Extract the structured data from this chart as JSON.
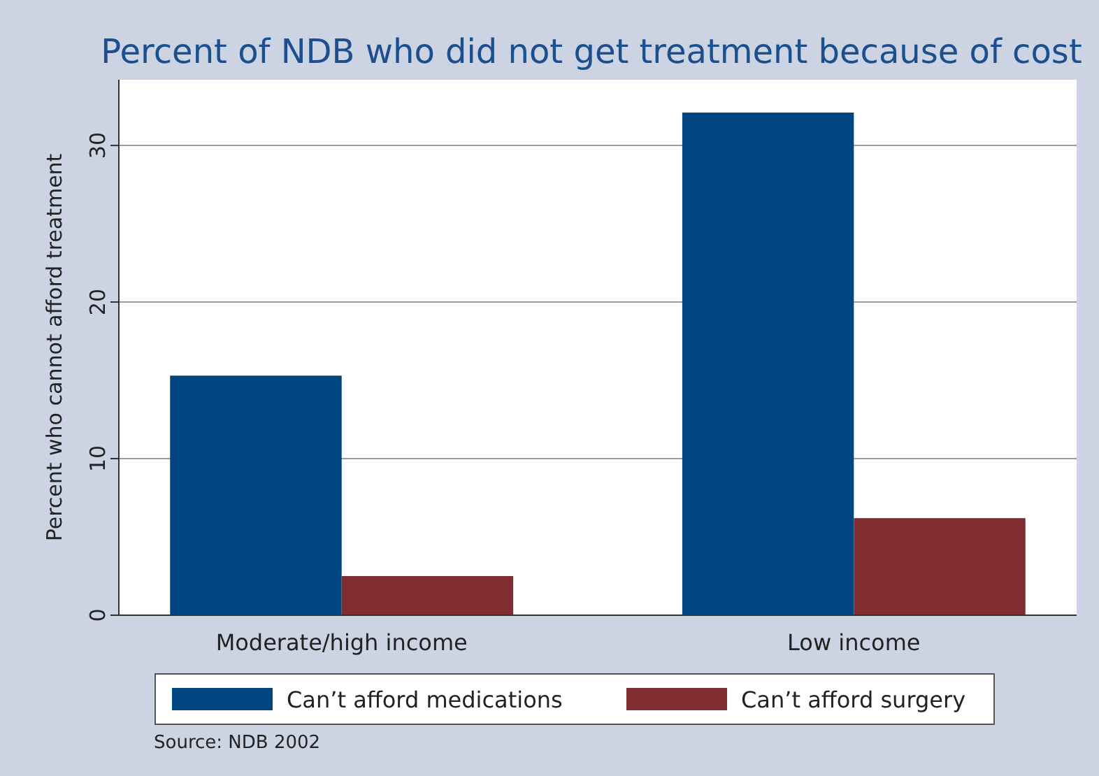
{
  "chart_data": {
    "type": "bar",
    "title": "Percent of NDB who did not get treatment because of cost",
    "ylabel": "Percent who cannot afford treatment",
    "categories": [
      "Moderate/high income",
      "Low income"
    ],
    "series": [
      {
        "name": "Can’t afford medications",
        "color": "#00457f",
        "values": [
          15.3,
          32.1
        ]
      },
      {
        "name": "Can’t afford surgery",
        "color": "#7f2d30",
        "values": [
          2.5,
          6.2
        ]
      }
    ],
    "ylim": [
      0,
      34.2
    ],
    "yticks": [
      0,
      10,
      20,
      30
    ],
    "grid": "y",
    "legend": "bottom",
    "annotations": [
      "Source: NDB 2002"
    ]
  }
}
